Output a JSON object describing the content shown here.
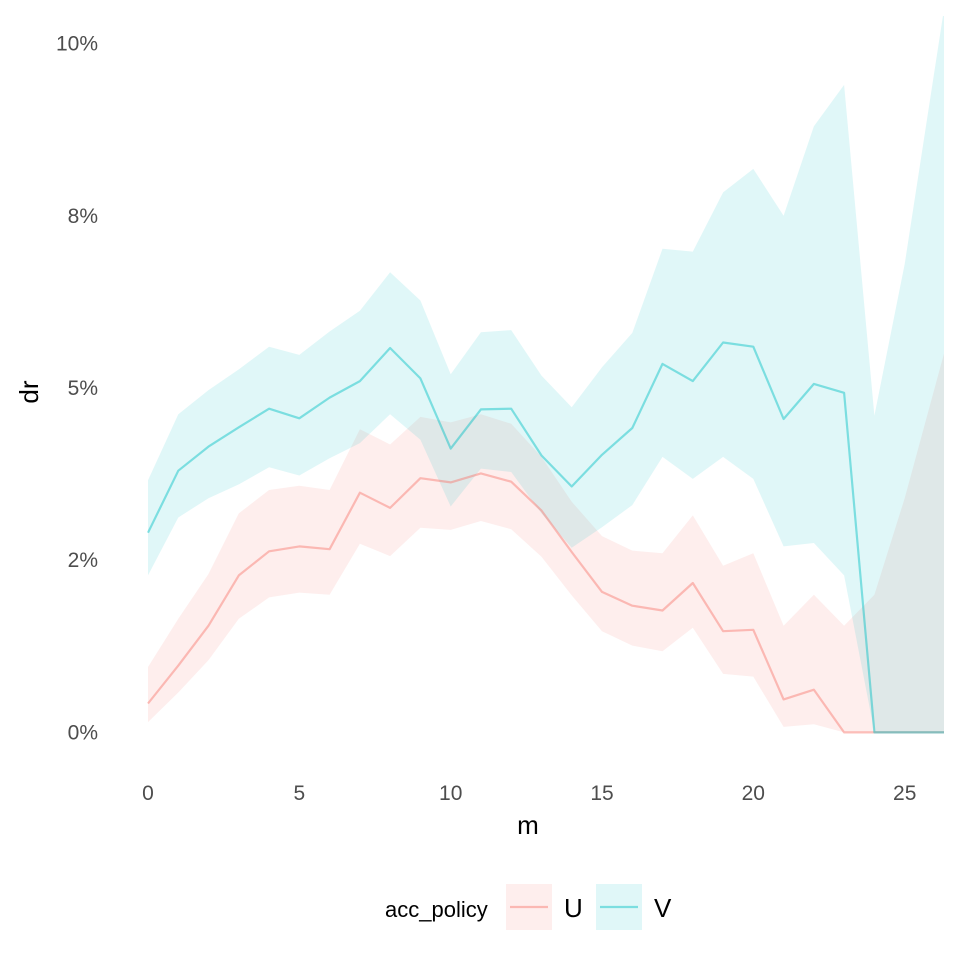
{
  "chart_data": {
    "type": "line",
    "xlabel": "m",
    "ylabel": "dr",
    "xlim": [
      0,
      26.3
    ],
    "ylim": [
      -0.004,
      0.104
    ],
    "x_ticks": [
      0,
      5,
      10,
      15,
      20,
      25
    ],
    "y_ticks": [
      0,
      0.025,
      0.05,
      0.075,
      0.1
    ],
    "x_tick_labels": [
      "0",
      "5",
      "10",
      "15",
      "20",
      "25"
    ],
    "y_tick_labels": [
      "0%",
      "2%",
      "5%",
      "8%",
      "10%"
    ],
    "grid": false,
    "legend_position": "bottom",
    "legend_title": "acc_policy",
    "x": [
      0,
      1,
      2,
      3,
      4,
      5,
      6,
      7,
      8,
      9,
      10,
      11,
      12,
      13,
      14,
      15,
      16,
      17,
      18,
      19,
      20,
      21,
      22,
      23,
      24,
      25,
      26.3
    ],
    "series": [
      {
        "name": "U",
        "color": "#F8766D",
        "values": [
          0.0042,
          0.0097,
          0.0155,
          0.0228,
          0.0263,
          0.027,
          0.0266,
          0.0348,
          0.0326,
          0.0369,
          0.0363,
          0.0376,
          0.0364,
          0.0322,
          0.0262,
          0.0204,
          0.0184,
          0.0177,
          0.0217,
          0.0147,
          0.0149,
          0.0048,
          0.0062,
          0.0,
          0.0,
          0.0,
          0.0
        ],
        "lower": [
          0.0015,
          0.0058,
          0.0105,
          0.0165,
          0.0196,
          0.0203,
          0.02,
          0.0274,
          0.0256,
          0.0297,
          0.0294,
          0.0307,
          0.0295,
          0.0255,
          0.0199,
          0.0147,
          0.0126,
          0.0118,
          0.0152,
          0.0085,
          0.0081,
          0.0008,
          0.0012,
          0.0,
          0.0,
          0.0,
          0.0
        ],
        "upper": [
          0.0095,
          0.0165,
          0.023,
          0.0318,
          0.0352,
          0.0358,
          0.0352,
          0.044,
          0.0418,
          0.0458,
          0.045,
          0.0462,
          0.0448,
          0.04,
          0.0335,
          0.0285,
          0.0264,
          0.026,
          0.0315,
          0.0242,
          0.026,
          0.0155,
          0.02,
          0.0155,
          0.02,
          0.034,
          0.055
        ]
      },
      {
        "name": "V",
        "color": "#00BFC4",
        "values": [
          0.029,
          0.038,
          0.0415,
          0.0443,
          0.047,
          0.0456,
          0.0486,
          0.051,
          0.0558,
          0.0514,
          0.0412,
          0.0469,
          0.047,
          0.0402,
          0.0357,
          0.0403,
          0.0442,
          0.0535,
          0.051,
          0.0566,
          0.056,
          0.0455,
          0.0506,
          0.0493,
          0.0,
          0.0,
          0.0
        ],
        "lower": [
          0.0228,
          0.0312,
          0.034,
          0.036,
          0.0385,
          0.0373,
          0.0398,
          0.042,
          0.0462,
          0.0425,
          0.0328,
          0.0383,
          0.0378,
          0.0318,
          0.0268,
          0.0298,
          0.033,
          0.04,
          0.0368,
          0.04,
          0.0368,
          0.027,
          0.0275,
          0.0228,
          0.0,
          0.0,
          0.0
        ],
        "upper": [
          0.0366,
          0.0462,
          0.0497,
          0.0527,
          0.056,
          0.0548,
          0.0582,
          0.0612,
          0.0668,
          0.0627,
          0.052,
          0.0581,
          0.0584,
          0.0518,
          0.0472,
          0.053,
          0.058,
          0.0702,
          0.0698,
          0.0784,
          0.0818,
          0.075,
          0.088,
          0.094,
          0.046,
          0.068,
          0.105
        ]
      }
    ]
  }
}
